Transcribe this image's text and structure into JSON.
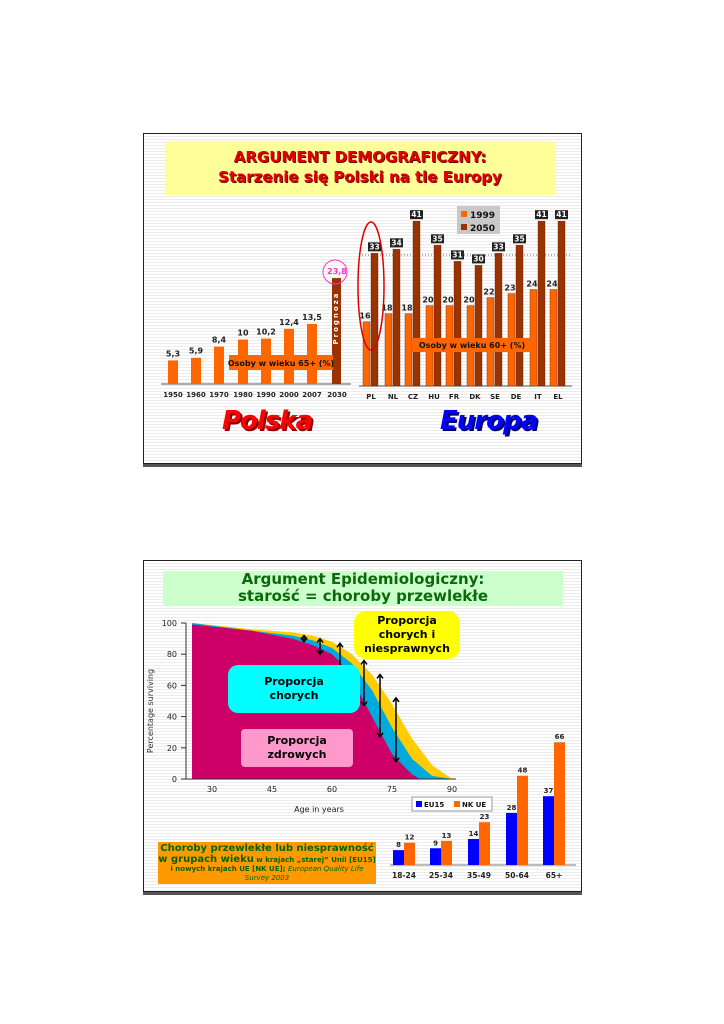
{
  "slide1": {
    "title_line1": "ARGUMENT DEMOGRAFICZNY:",
    "title_line2": "Starzenie się Polski na tle Europy",
    "logo_left": "Polska",
    "logo_right": "Europa"
  },
  "slide2": {
    "title_line1": "Argument Epidemiologiczny:",
    "title_line2": "starość = choroby przewlekłe",
    "callout_disabled": "Proporcja chorych i niesprawnych",
    "callout_sick": "Proporcja chorych",
    "callout_healthy": "Proporcja zdrowych",
    "caption_big": "Choroby przewlekłe lub niesprawność w grupach wieku",
    "caption_small": " w krajach „starej” Unii [EU15] i nowych krajach UE [NK UE]; ",
    "caption_source": "European Quality Life Survey 2003"
  },
  "chart_data": [
    {
      "type": "bar",
      "title": "Osoby w wieku 65+ (%)",
      "categories": [
        "1950",
        "1960",
        "1970",
        "1980",
        "1990",
        "2000",
        "2007",
        "2030"
      ],
      "values": [
        5.3,
        5.9,
        8.4,
        10,
        10.2,
        12.4,
        13.5,
        23.8
      ],
      "labels": [
        "5,3",
        "5,9",
        "8,4",
        "10",
        "10,2",
        "12,4",
        "13,5",
        "23,8"
      ],
      "forecast_label": "Prognoza",
      "colors": {
        "bar": "#ff6600",
        "forecast": "#993300",
        "highlight": "#ff33cc"
      }
    },
    {
      "type": "bar",
      "title": "Osoby w wieku 60+ (%)",
      "categories": [
        "PL",
        "NL",
        "CZ",
        "HU",
        "FR",
        "DK",
        "SE",
        "DE",
        "IT",
        "EL"
      ],
      "series": [
        {
          "name": "1999",
          "values": [
            16,
            18,
            18,
            20,
            20,
            20,
            22,
            23,
            24,
            24
          ],
          "color": "#ff6600"
        },
        {
          "name": "2050",
          "values": [
            33,
            34,
            41,
            35,
            31,
            30,
            33,
            35,
            41,
            41
          ],
          "color": "#993300"
        }
      ],
      "legend": "top-center"
    },
    {
      "type": "area",
      "xlabel": "Age in years",
      "ylabel": "Percentage surviving",
      "xticks": [
        30,
        45,
        60,
        75,
        90
      ],
      "yticks": [
        0,
        20,
        40,
        60,
        80,
        100
      ],
      "xlim": [
        25,
        90
      ],
      "ylim": [
        0,
        100
      ],
      "series": [
        {
          "name": "total",
          "x": [
            25,
            40,
            50,
            55,
            60,
            65,
            70,
            75,
            80,
            85,
            90
          ],
          "y": [
            100,
            96,
            94,
            92,
            88,
            80,
            67,
            48,
            26,
            9,
            0
          ],
          "color": "#ffcc00"
        },
        {
          "name": "sick",
          "x": [
            25,
            40,
            50,
            55,
            60,
            65,
            70,
            75,
            80,
            85,
            90
          ],
          "y": [
            100,
            95,
            92,
            89,
            84,
            74,
            57,
            33,
            13,
            2,
            0
          ],
          "color": "#00aadd"
        },
        {
          "name": "healthy",
          "x": [
            25,
            40,
            50,
            55,
            60,
            62,
            65,
            70,
            75,
            80,
            82
          ],
          "y": [
            99,
            95,
            90,
            86,
            80,
            75,
            64,
            40,
            16,
            3,
            0
          ],
          "color": "#cc0066"
        }
      ]
    },
    {
      "type": "bar",
      "categories": [
        "18-24",
        "25-34",
        "35-49",
        "50-64",
        "65+"
      ],
      "series": [
        {
          "name": "EU15",
          "values": [
            8,
            9,
            14,
            28,
            37
          ],
          "color": "#0000ff"
        },
        {
          "name": "NK UE",
          "values": [
            12,
            13,
            23,
            48,
            66
          ],
          "color": "#ff6600"
        }
      ],
      "legend": "top-left"
    }
  ]
}
